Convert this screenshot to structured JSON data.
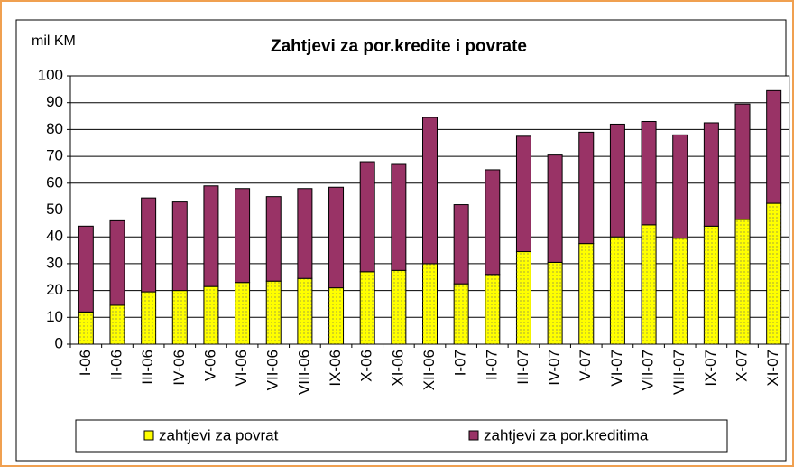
{
  "chart_data": {
    "type": "stacked-bar",
    "title": "Zahtjevi za por.kredite i povrate",
    "y_label": "mil KM",
    "categories": [
      "I-06",
      "II-06",
      "III-06",
      "IV-06",
      "V-06",
      "VI-06",
      "VII-06",
      "VIII-06",
      "IX-06",
      "X-06",
      "XI-06",
      "XII-06",
      "I-07",
      "II-07",
      "III-07",
      "IV-07",
      "V-07",
      "VI-07",
      "VII-07",
      "VIII-07",
      "IX-07",
      "X-07",
      "XI-07"
    ],
    "series": [
      {
        "name": "zahtjevi za povrat",
        "color": "#ffff00",
        "values": [
          12,
          14.5,
          19.5,
          20,
          21.5,
          23,
          23.5,
          24.5,
          21,
          27,
          27.5,
          30,
          22.5,
          26,
          34.5,
          30.5,
          37.5,
          40,
          44.5,
          39.5,
          44,
          46.5,
          52.5
        ]
      },
      {
        "name": "zahtjevi za por.kreditima",
        "color": "#993366",
        "values": [
          32,
          31.5,
          35,
          33,
          37.5,
          35,
          31.5,
          33.5,
          37.5,
          41,
          39.5,
          54.5,
          29.5,
          39,
          43,
          40,
          41.5,
          42,
          38.5,
          38.5,
          38.5,
          43,
          42
        ]
      }
    ],
    "ylim": [
      0,
      100
    ],
    "yticks": [
      0,
      10,
      20,
      30,
      40,
      50,
      60,
      70,
      80,
      90,
      100
    ],
    "grid": true,
    "legend": "bottom"
  }
}
